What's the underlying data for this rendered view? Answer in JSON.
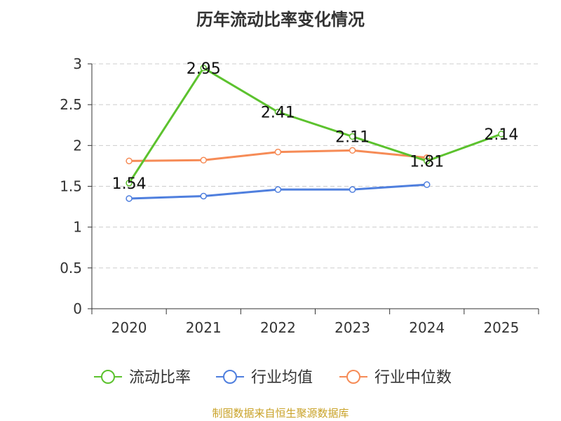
{
  "chart_data": {
    "type": "line",
    "title": "历年流动比率变化情况",
    "categories": [
      "2020",
      "2021",
      "2022",
      "2023",
      "2024",
      "2025"
    ],
    "ylim": [
      0,
      3
    ],
    "yticks": [
      0,
      0.5,
      1,
      1.5,
      2,
      2.5,
      3
    ],
    "ytick_labels": [
      "0",
      "0.5",
      "1",
      "1.5",
      "2",
      "2.5",
      "3"
    ],
    "grid": true,
    "legend_position": "bottom",
    "series": [
      {
        "name": "流动比率",
        "color": "#5cc22e",
        "values": [
          1.54,
          2.95,
          2.41,
          2.11,
          1.81,
          2.14
        ],
        "labels": [
          "1.54",
          "2.95",
          "2.41",
          "2.11",
          "1.81",
          "2.14"
        ]
      },
      {
        "name": "行业均值",
        "color": "#4f7fde",
        "values": [
          1.35,
          1.38,
          1.46,
          1.46,
          1.52,
          null
        ]
      },
      {
        "name": "行业中位数",
        "color": "#f68b56",
        "values": [
          1.81,
          1.82,
          1.92,
          1.94,
          1.85,
          null
        ]
      }
    ]
  },
  "footer": {
    "source": "制图数据来自恒生聚源数据库",
    "source_color": "#c9a227"
  }
}
